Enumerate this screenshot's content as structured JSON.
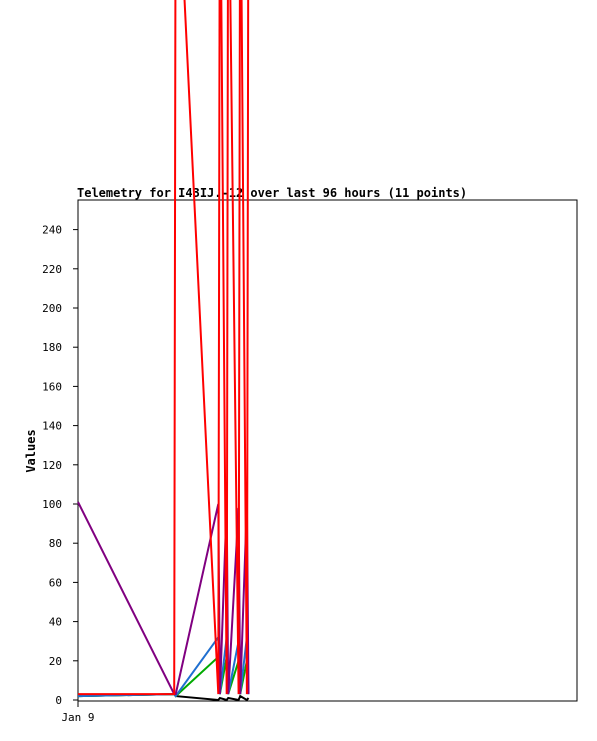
{
  "chart_data": {
    "type": "line",
    "title": "Telemetry for I43IJ.-12 over last 96 hours (11 points)",
    "ylabel": "Values",
    "xlabel": "",
    "ylim": [
      0,
      255
    ],
    "yticks": [
      0,
      20,
      40,
      60,
      80,
      100,
      120,
      140,
      160,
      180,
      200,
      220,
      240
    ],
    "x_tick_labels": [
      "Jan 9"
    ],
    "x_range_hours": [
      0,
      96
    ],
    "grid": false,
    "legend": "none",
    "x": [
      0,
      18.5,
      18.8,
      27.0,
      27.3,
      28.6,
      28.9,
      30.9,
      31.2,
      32.5,
      32.8
    ],
    "series": [
      {
        "color": "#000000",
        "values": [
          2,
          3,
          2,
          0,
          1,
          0,
          1,
          0,
          2,
          0,
          1
        ]
      },
      {
        "color": "#00aa00",
        "values": [
          2,
          3,
          2,
          22,
          3,
          22,
          3,
          20,
          3,
          20,
          3
        ]
      },
      {
        "color": "#1f6fd0",
        "values": [
          2,
          3,
          2,
          32,
          3,
          32,
          3,
          30,
          3,
          32,
          3
        ]
      },
      {
        "color": "#800080",
        "values": [
          101,
          3,
          3,
          100,
          3,
          100,
          3,
          98,
          3,
          100,
          3
        ]
      },
      {
        "color": "#ff0000",
        "values": [
          3,
          3,
          450,
          3,
          450,
          3,
          450,
          3,
          450,
          3,
          450
        ]
      }
    ]
  }
}
